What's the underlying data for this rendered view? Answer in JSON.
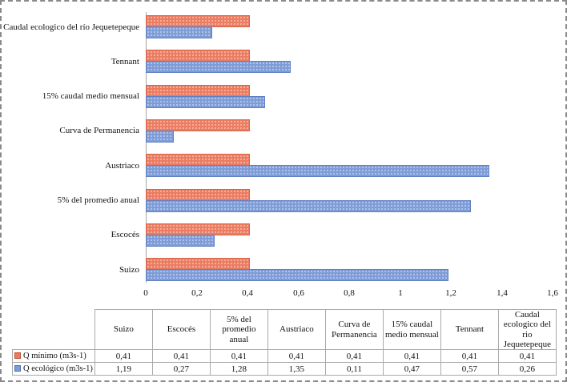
{
  "chart_data": {
    "type": "bar",
    "orientation": "horizontal",
    "title": "",
    "xlabel": "",
    "ylabel": "",
    "xlim": [
      0,
      1.6
    ],
    "grid": false,
    "legend_position": "table-below",
    "x_ticks": {
      "labels": [
        "0",
        "0,2",
        "0,4",
        "0,6",
        "0,8",
        "1",
        "1,2",
        "1,4",
        "1,6"
      ],
      "values": [
        0,
        0.2,
        0.4,
        0.6,
        0.8,
        1,
        1.2,
        1.4,
        1.6
      ]
    },
    "categories_top_to_bottom": [
      "Caudal ecologico del río Jequetepeque",
      "Tennant",
      "15% caudal medio mensual",
      "Curva de Permanencia",
      "Austriaco",
      "5% del promedio anual",
      "Escocés",
      "Suizo"
    ],
    "series": [
      {
        "name": "Q mínimo (m3s-1)",
        "color": "#EC7C61",
        "values_top_to_bottom": [
          0.41,
          0.41,
          0.41,
          0.41,
          0.41,
          0.41,
          0.41,
          0.41
        ]
      },
      {
        "name": "Q ecológico (m3s-1)",
        "color": "#7E9CD7",
        "values_top_to_bottom": [
          0.26,
          0.57,
          0.47,
          0.11,
          1.35,
          1.28,
          0.27,
          1.19
        ]
      }
    ]
  },
  "table": {
    "columns": [
      "Suizo",
      "Escocés",
      "5% del promedio anual",
      "Austriaco",
      "Curva de Permanencia",
      "15% caudal medio mensual",
      "Tennant",
      "Caudal ecologico del rio Jequetepeque"
    ],
    "rows": [
      {
        "label": "Q mínimo (m3s-1)",
        "swatch_color": "#EC7C61",
        "swatch_border": "#C0502F",
        "values": [
          "0,41",
          "0,41",
          "0,41",
          "0,41",
          "0,41",
          "0,41",
          "0,41",
          "0,41"
        ]
      },
      {
        "label": "Q ecológico (m3s-1)",
        "swatch_color": "#7E9CD7",
        "swatch_border": "#4C6FB5",
        "values": [
          "1,19",
          "0,27",
          "1,28",
          "1,35",
          "0,11",
          "0,47",
          "0,57",
          "0,26"
        ]
      }
    ]
  }
}
